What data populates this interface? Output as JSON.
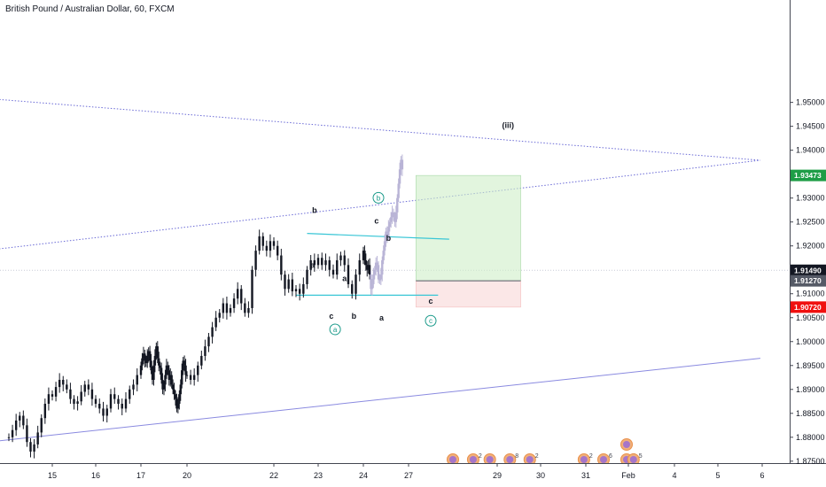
{
  "title": "British Pound / Australian Dollar, 60, FXCM",
  "chart_data": {
    "type": "candlestick",
    "y_axis": {
      "position": "right",
      "ticks": [
        "1.95000",
        "1.94500",
        "1.94000",
        "1.93500",
        "1.93000",
        "1.92500",
        "1.92000",
        "1.91500",
        "1.91000",
        "1.90500",
        "1.90000",
        "1.89500",
        "1.89000",
        "1.88500",
        "1.88000",
        "1.87500"
      ],
      "ylim": [
        1.8746,
        1.9714
      ]
    },
    "x_axis": {
      "ticks": [
        "15",
        "16",
        "17",
        "20",
        "22",
        "23",
        "24",
        "27",
        "29",
        "30",
        "31",
        "Feb",
        "4",
        "5",
        "6"
      ]
    },
    "price_badges": [
      {
        "label": "1.93473",
        "value": 1.93473,
        "color": "#1e9d46"
      },
      {
        "label": "1.91490",
        "value": 1.9149,
        "color": "#131722"
      },
      {
        "label": "1.91270",
        "value": 1.9127,
        "color": "#555a66"
      },
      {
        "label": "1.90720",
        "value": 1.9072,
        "color": "#f0100f"
      }
    ],
    "position": {
      "entry": 1.9127,
      "target": 1.93473,
      "stop": 1.9072,
      "start_date": "27 Jan 04:00",
      "end_date": "29 Jan 13:00"
    },
    "wave_labels": [
      {
        "text": "(iii)",
        "date": "29 Jan 06:00",
        "price": 1.9447
      },
      {
        "text": "b",
        "date": "22 Jan 22:00",
        "price": 1.9269
      },
      {
        "text": "c",
        "date": "24 Jan 21:00",
        "price": 1.9247
      },
      {
        "text": "b",
        "date": "25 Jan 16:00",
        "price": 1.9211
      },
      {
        "text": "a",
        "date": "22 Jan 21:00",
        "price": 1.9154
      },
      {
        "text": "a",
        "date": "23 Jan 14:00",
        "price": 1.9126
      },
      {
        "text": "c",
        "date": "23 Jan 07:00",
        "price": 1.9048
      },
      {
        "text": "b",
        "date": "23 Jan 19:00",
        "price": 1.9048
      },
      {
        "text": "a",
        "date": "25 Jan 05:00",
        "price": 1.9044
      },
      {
        "text": "c",
        "date": "27 Jan 12:00",
        "price": 1.9079
      }
    ],
    "circled_labels": [
      {
        "text": "a",
        "date": "23 Jan 09:00",
        "price": 1.902
      },
      {
        "text": "b",
        "date": "25 Jan 00:00",
        "price": 1.9295
      },
      {
        "text": "c",
        "date": "27 Jan 12:00",
        "price": 1.9038
      }
    ],
    "channel_lines": [
      {
        "start": [
          "12 Jan 00:00",
          1.9519
        ],
        "end": [
          "5 Feb 23:00",
          1.9379
        ],
        "style": "dotted",
        "color": "#6b6bd6"
      },
      {
        "start": [
          "12 Jan 00:00",
          1.9175
        ],
        "end": [
          "5 Feb 23:00",
          1.9379
        ],
        "style": "dotted",
        "color": "#6b6bd6"
      },
      {
        "start": [
          "12 Jan 00:00",
          1.8775
        ],
        "end": [
          "5 Feb 23:00",
          1.8965
        ],
        "style": "solid",
        "color": "#8a8ae0"
      }
    ],
    "triangle_lines": [
      {
        "start": [
          "22 Jan 18:00",
          1.9226
        ],
        "end": [
          "27 Jan 22:00",
          1.9214
        ]
      },
      {
        "start": [
          "22 Jan 12:00",
          1.9097
        ],
        "end": [
          "27 Jan 16:00",
          1.9097
        ]
      }
    ],
    "event_markers": [
      {
        "date": "28 Jan 00:00",
        "count": ""
      },
      {
        "date": "28 Jan 11:00",
        "count": "2"
      },
      {
        "date": "28 Jan 20:00",
        "count": ""
      },
      {
        "date": "29 Jan 07:00",
        "count": "8"
      },
      {
        "date": "29 Jan 18:00",
        "count": "2"
      },
      {
        "date": "30 Jan 23:00",
        "count": "2"
      },
      {
        "date": "31 Jan 10:00",
        "count": "6"
      },
      {
        "date": "31 Jan 23:00",
        "count": "5"
      },
      {
        "date": "1 Feb 08:00",
        "count": "5"
      },
      {
        "date": "31 Jan 23:00",
        "count": ""
      }
    ],
    "candles": {
      "interval": "60",
      "color": "#131722",
      "projection_color": "#b9b4d6",
      "start": "14 Jan 00:00",
      "step_hours": 2,
      "closes": [
        1.88,
        1.8815,
        1.8835,
        1.8845,
        1.8825,
        1.879,
        1.877,
        1.8785,
        1.881,
        1.884,
        1.887,
        1.889,
        1.8885,
        1.8905,
        1.892,
        1.891,
        1.89,
        1.888,
        1.887,
        1.8875,
        1.8895,
        1.891,
        1.89,
        1.888,
        1.887,
        1.886,
        1.8845,
        1.886,
        1.889,
        1.888,
        1.887,
        1.886,
        1.888,
        1.89,
        1.891,
        1.893,
        1.895,
        1.8965,
        1.8975,
        1.896,
        1.8955,
        1.897,
        1.898,
        1.896,
        1.894,
        1.892,
        1.895,
        1.897,
        1.899,
        1.8965,
        1.895,
        1.8945,
        1.892,
        1.89,
        1.891,
        1.893,
        1.895,
        1.894,
        1.892,
        1.893,
        1.891,
        1.89,
        1.889,
        1.888,
        1.886,
        1.887,
        1.889,
        1.891,
        1.894,
        1.896,
        1.895,
        1.893,
        1.893,
        1.892,
        1.893,
        1.895,
        1.897,
        1.899,
        1.901,
        1.903,
        1.905,
        1.906,
        1.908,
        1.906,
        1.907,
        1.909,
        1.911,
        1.908,
        1.906,
        1.907,
        1.915,
        1.919,
        1.922,
        1.92,
        1.919,
        1.921,
        1.92,
        1.918,
        1.914,
        1.911,
        1.913,
        1.9105,
        1.911,
        1.91,
        1.912,
        1.915,
        1.917,
        1.916,
        1.9175,
        1.916,
        1.917,
        1.915,
        1.914,
        1.917,
        1.918,
        1.916,
        1.912,
        1.91,
        1.914,
        1.917,
        1.919,
        1.917,
        1.916,
        1.915,
        1.916,
        1.914,
        1.911,
        1.912,
        1.914,
        1.915,
        1.9165,
        1.916,
        1.913,
        1.913,
        1.914,
        1.917,
        1.919,
        1.921,
        1.923,
        1.922,
        1.924,
        1.925,
        1.926,
        1.927,
        1.926,
        1.925,
        1.927,
        1.93,
        1.933,
        1.936,
        1.938,
        1.936
      ],
      "projection_from_index": 126
    }
  }
}
